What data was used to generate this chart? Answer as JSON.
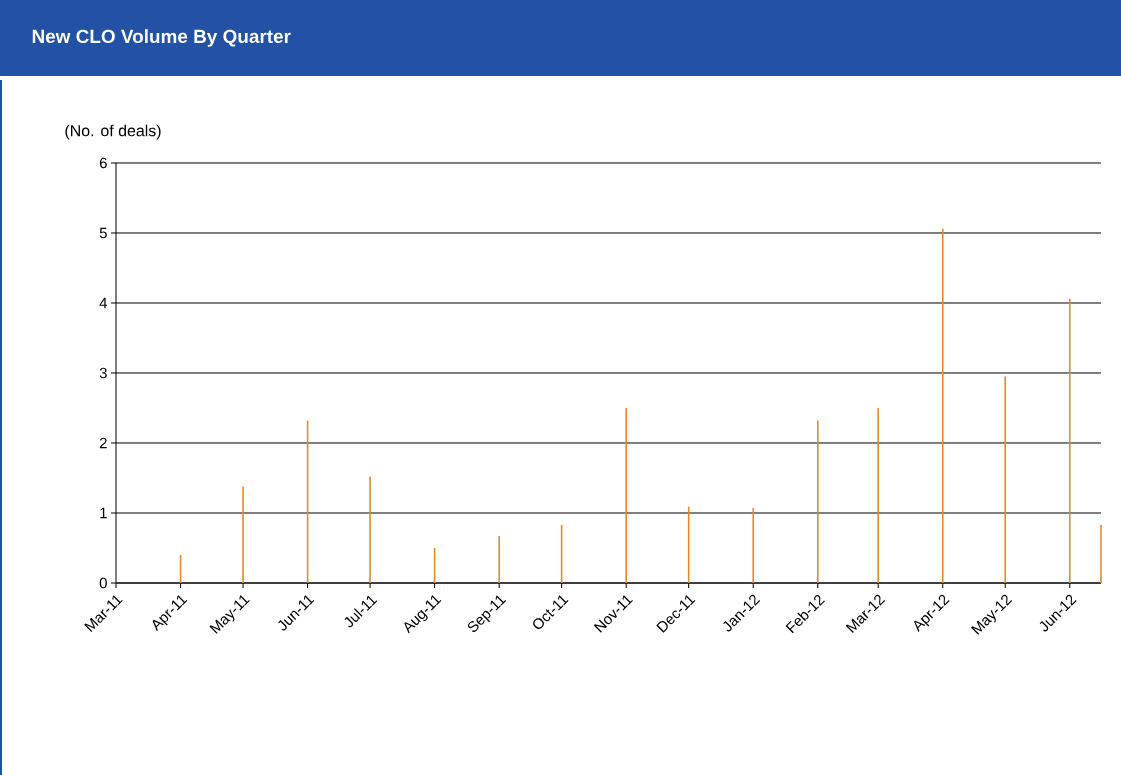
{
  "chart_data": {
    "type": "bar",
    "title": "New CLO Volume By Quarter",
    "ylabel": "(No. of deals)",
    "x": [
      "2011-04",
      "2011-05",
      "2011-06",
      "2011-07",
      "2011-08",
      "2011-09",
      "2011-10",
      "2011-11",
      "2011-12",
      "2012-01",
      "2012-02",
      "2012-03",
      "2012-04",
      "2012-05",
      "2012-06",
      "2012-06-16"
    ],
    "values": [
      0.4,
      1.38,
      2.32,
      1.52,
      0.5,
      0.67,
      0.83,
      2.5,
      1.09,
      1.07,
      2.32,
      2.5,
      5.06,
      2.95,
      4.06,
      0.83
    ],
    "color": "#e08a2c",
    "xlim": [
      "2011-03",
      "2012-06-16"
    ],
    "xticks": [
      {
        "value": "2011-03",
        "label": "Mar-11"
      },
      {
        "value": "2011-04",
        "label": "Apr-11"
      },
      {
        "value": "2011-05",
        "label": "May-11"
      },
      {
        "value": "2011-06",
        "label": "Jun-11"
      },
      {
        "value": "2011-07",
        "label": "Jul-11"
      },
      {
        "value": "2011-08",
        "label": "Aug-11"
      },
      {
        "value": "2011-09",
        "label": "Sep-11"
      },
      {
        "value": "2011-10",
        "label": "Oct-11"
      },
      {
        "value": "2011-11",
        "label": "Nov-11"
      },
      {
        "value": "2011-12",
        "label": "Dec-11"
      },
      {
        "value": "2012-01",
        "label": "Jan-12"
      },
      {
        "value": "2012-02",
        "label": "Feb-12"
      },
      {
        "value": "2012-03",
        "label": "Mar-12"
      },
      {
        "value": "2012-04",
        "label": "Apr-12"
      },
      {
        "value": "2012-05",
        "label": "May-12"
      },
      {
        "value": "2012-06",
        "label": "Jun-12"
      }
    ],
    "ylim": [
      0,
      6
    ],
    "yticks": [
      0,
      1,
      2,
      3,
      4,
      5,
      6
    ],
    "grid": "y"
  }
}
